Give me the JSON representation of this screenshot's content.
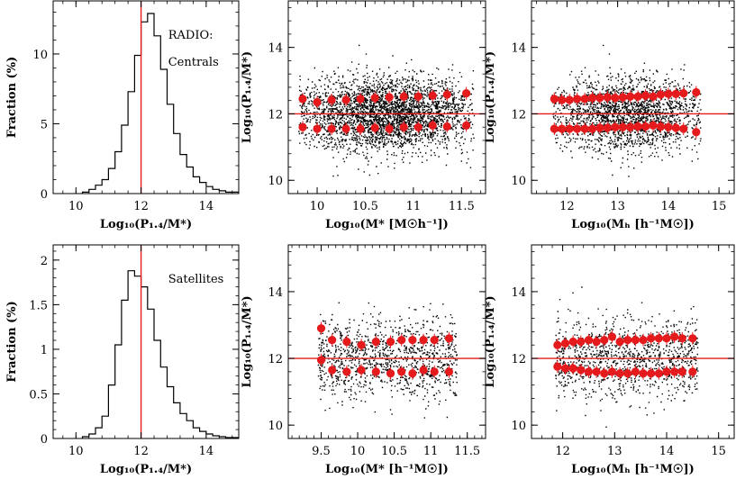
{
  "chart_data": [
    {
      "id": "p1",
      "type": "histogram",
      "xlabel": "Log₁₀(P₁.₄/M*)",
      "ylabel": "Fraction (%)",
      "xlim": [
        9.3,
        15.0
      ],
      "ylim": [
        0,
        13.8
      ],
      "xticks": [
        "10",
        "12",
        "14"
      ],
      "yticks": [
        "0",
        "5",
        "10"
      ],
      "xtick_values": [
        10,
        12,
        14
      ],
      "ytick_values": [
        0,
        5,
        10
      ],
      "annotations": [
        "RADIO:",
        "Centrals"
      ],
      "vline": 12.0,
      "bin_width": 0.2,
      "bin_edges_start": 10.2,
      "values": [
        0.1,
        0.3,
        0.6,
        1.0,
        1.8,
        3.0,
        4.9,
        7.3,
        9.9,
        12.3,
        12.9,
        11.3,
        8.9,
        6.4,
        4.3,
        2.8,
        1.9,
        1.2,
        0.8,
        0.5,
        0.3,
        0.2,
        0.1,
        0.1
      ]
    },
    {
      "id": "p2",
      "type": "scatter",
      "xlabel": "Log₁₀(M* [M☉h⁻¹])",
      "ylabel": "Log₁₀(P₁.₄/M*)",
      "xlim": [
        9.7,
        11.75
      ],
      "ylim": [
        9.6,
        15.4
      ],
      "xticks": [
        "10",
        "10.5",
        "11",
        "11.5"
      ],
      "yticks": [
        "10",
        "12",
        "14"
      ],
      "xtick_values": [
        10,
        10.5,
        11,
        11.5
      ],
      "ytick_values": [
        10,
        12,
        14
      ],
      "hline": 12.0,
      "series": [
        {
          "x": [
            9.85,
            10.0,
            10.15,
            10.3,
            10.45,
            10.6,
            10.75,
            10.9,
            11.05,
            11.2,
            11.35,
            11.55
          ],
          "y": [
            12.45,
            12.35,
            12.42,
            12.42,
            12.45,
            12.48,
            12.5,
            12.52,
            12.52,
            12.55,
            12.58,
            12.62
          ]
        },
        {
          "x": [
            9.85,
            10.0,
            10.15,
            10.3,
            10.45,
            10.6,
            10.75,
            10.9,
            11.05,
            11.2,
            11.35,
            11.55
          ],
          "y": [
            11.6,
            11.55,
            11.55,
            11.55,
            11.55,
            11.58,
            11.55,
            11.6,
            11.6,
            11.65,
            11.62,
            11.65
          ]
        }
      ]
    },
    {
      "id": "p3",
      "type": "scatter",
      "xlabel": "Log₁₀(Mₕ [h⁻¹M☉])",
      "ylabel": "Log₁₀(P₁.₄/M*)",
      "xlim": [
        11.3,
        15.3
      ],
      "ylim": [
        9.6,
        15.4
      ],
      "xticks": [
        "12",
        "13",
        "14",
        "15"
      ],
      "yticks": [
        "10",
        "12",
        "14"
      ],
      "xtick_values": [
        12,
        13,
        14,
        15
      ],
      "ytick_values": [
        10,
        12,
        14
      ],
      "hline": 12.0,
      "series": [
        {
          "x": [
            11.75,
            11.9,
            12.05,
            12.2,
            12.35,
            12.5,
            12.65,
            12.8,
            12.95,
            13.1,
            13.25,
            13.4,
            13.55,
            13.7,
            13.85,
            14.0,
            14.15,
            14.3,
            14.55
          ],
          "y": [
            12.45,
            12.42,
            12.42,
            12.45,
            12.45,
            12.48,
            12.48,
            12.5,
            12.48,
            12.5,
            12.52,
            12.52,
            12.55,
            12.52,
            12.58,
            12.6,
            12.6,
            12.62,
            12.65
          ]
        },
        {
          "x": [
            11.75,
            11.9,
            12.05,
            12.2,
            12.35,
            12.5,
            12.65,
            12.8,
            12.95,
            13.1,
            13.25,
            13.4,
            13.55,
            13.7,
            13.85,
            14.0,
            14.15,
            14.3,
            14.55
          ],
          "y": [
            11.55,
            11.55,
            11.55,
            11.55,
            11.55,
            11.55,
            11.58,
            11.58,
            11.6,
            11.6,
            11.6,
            11.62,
            11.62,
            11.65,
            11.62,
            11.6,
            11.58,
            11.55,
            11.45
          ]
        }
      ]
    },
    {
      "id": "p4",
      "type": "histogram",
      "xlabel": "Log₁₀(P₁.₄/M*)",
      "ylabel": "Fraction (%)",
      "xlim": [
        9.3,
        15.0
      ],
      "ylim": [
        0,
        2.17
      ],
      "xticks": [
        "10",
        "12",
        "14"
      ],
      "yticks": [
        "0",
        "0.5",
        "1",
        "1.5",
        "2"
      ],
      "xtick_values": [
        10,
        12,
        14
      ],
      "ytick_values": [
        0,
        0.5,
        1,
        1.5,
        2
      ],
      "annotations": [
        "Satellites"
      ],
      "vline": 12.0,
      "bin_width": 0.2,
      "bin_edges_start": 10.2,
      "values": [
        0.02,
        0.05,
        0.12,
        0.25,
        0.6,
        1.05,
        1.55,
        1.88,
        1.82,
        1.7,
        1.45,
        1.1,
        0.8,
        0.58,
        0.4,
        0.28,
        0.2,
        0.12,
        0.08,
        0.05,
        0.03,
        0.02,
        0.01,
        0.01
      ]
    },
    {
      "id": "p5",
      "type": "scatter",
      "xlabel": "Log₁₀(M* [h⁻¹M☉])",
      "ylabel": "Log₁₀(P₁.₄/M*)",
      "xlim": [
        9.05,
        11.75
      ],
      "ylim": [
        9.6,
        15.4
      ],
      "xticks": [
        "9.5",
        "10",
        "10.5",
        "11",
        "11.5"
      ],
      "yticks": [
        "10",
        "12",
        "14"
      ],
      "xtick_values": [
        9.5,
        10,
        10.5,
        11,
        11.5
      ],
      "ytick_values": [
        10,
        12,
        14
      ],
      "hline": 12.0,
      "series": [
        {
          "x": [
            9.5,
            9.65,
            9.85,
            10.05,
            10.25,
            10.45,
            10.6,
            10.75,
            10.9,
            11.05,
            11.25
          ],
          "y": [
            12.9,
            12.55,
            12.5,
            12.4,
            12.5,
            12.5,
            12.55,
            12.55,
            12.55,
            12.55,
            12.6
          ]
        },
        {
          "x": [
            9.5,
            9.65,
            9.85,
            10.05,
            10.25,
            10.45,
            10.6,
            10.75,
            10.9,
            11.05,
            11.25
          ],
          "y": [
            11.95,
            11.65,
            11.6,
            11.65,
            11.6,
            11.55,
            11.6,
            11.55,
            11.65,
            11.6,
            11.6
          ]
        }
      ]
    },
    {
      "id": "p6",
      "type": "scatter",
      "xlabel": "Log₁₀(Mₕ [h⁻¹M☉])",
      "ylabel": "Log₁₀(P₁.₄/M*)",
      "xlim": [
        11.4,
        15.3
      ],
      "ylim": [
        9.6,
        15.4
      ],
      "xticks": [
        "12",
        "13",
        "14",
        "15"
      ],
      "yticks": [
        "10",
        "12",
        "14"
      ],
      "xtick_values": [
        12,
        13,
        14,
        15
      ],
      "ytick_values": [
        10,
        12,
        14
      ],
      "hline": 12.0,
      "series": [
        {
          "x": [
            11.9,
            12.05,
            12.2,
            12.35,
            12.5,
            12.65,
            12.8,
            12.95,
            13.1,
            13.25,
            13.4,
            13.55,
            13.7,
            13.85,
            14.0,
            14.15,
            14.3,
            14.5
          ],
          "y": [
            12.4,
            12.45,
            12.5,
            12.5,
            12.55,
            12.5,
            12.55,
            12.65,
            12.5,
            12.55,
            12.55,
            12.55,
            12.6,
            12.6,
            12.6,
            12.65,
            12.6,
            12.6
          ]
        },
        {
          "x": [
            11.9,
            12.05,
            12.2,
            12.35,
            12.5,
            12.65,
            12.8,
            12.95,
            13.1,
            13.25,
            13.4,
            13.55,
            13.7,
            13.85,
            14.0,
            14.15,
            14.3,
            14.5
          ],
          "y": [
            11.75,
            11.7,
            11.7,
            11.65,
            11.6,
            11.6,
            11.55,
            11.6,
            11.55,
            11.55,
            11.6,
            11.55,
            11.55,
            11.55,
            11.6,
            11.6,
            11.6,
            11.6
          ]
        }
      ]
    }
  ],
  "colors": {
    "accent": "#e41a1c",
    "points": "#000000",
    "axes": "#000000"
  }
}
